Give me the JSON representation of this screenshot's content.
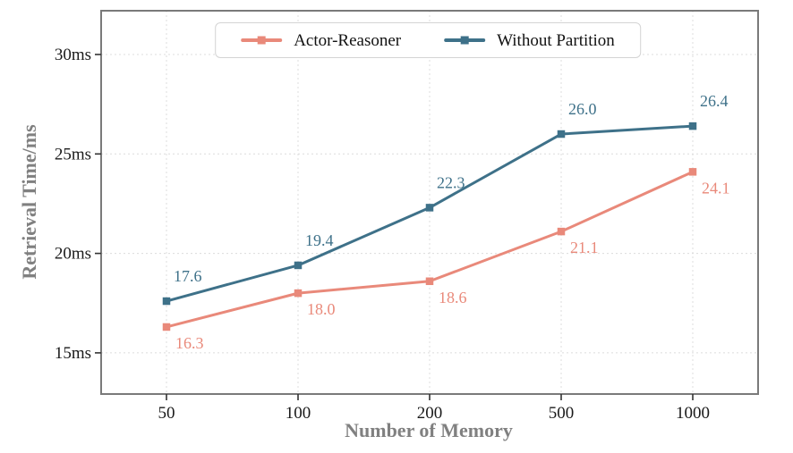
{
  "chart_data": {
    "type": "line",
    "title": "",
    "xlabel": "Number of Memory",
    "ylabel": "Retrieval Time/ms",
    "categories": [
      "50",
      "100",
      "200",
      "500",
      "1000"
    ],
    "y_ticks": [
      {
        "value": 15,
        "label": "15ms"
      },
      {
        "value": 20,
        "label": "20ms"
      },
      {
        "value": 25,
        "label": "25ms"
      },
      {
        "value": 30,
        "label": "30ms"
      }
    ],
    "ylim": [
      12.93,
      32.2
    ],
    "grid": true,
    "legend_position": "top-center",
    "series": [
      {
        "name": "Actor-Reasoner",
        "color": "#E9897A",
        "marker": "square",
        "label_side": "below",
        "values": [
          16.3,
          18.0,
          18.6,
          21.1,
          24.1
        ],
        "point_labels": [
          "16.3",
          "18.0",
          "18.6",
          "21.1",
          "24.1"
        ]
      },
      {
        "name": "Without Partition",
        "color": "#3E7189",
        "marker": "square",
        "label_side": "above",
        "values": [
          17.6,
          19.4,
          22.3,
          26.0,
          26.4
        ],
        "point_labels": [
          "17.6",
          "19.4",
          "22.3",
          "26.0",
          "26.4"
        ]
      }
    ],
    "colors": {
      "frame": "#7A7A7A",
      "grid": "#DCDCDC",
      "tick": "#333333",
      "axis_title": "#808080",
      "tick_label": "#1A1A1A"
    }
  }
}
